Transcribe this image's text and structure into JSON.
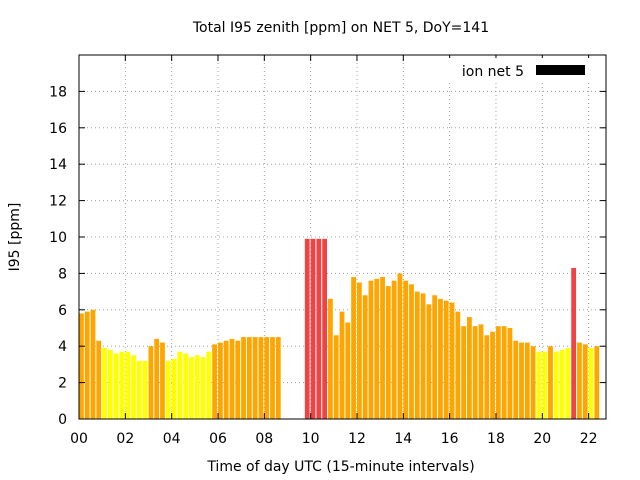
{
  "chart_data": {
    "type": "bar",
    "title": "Total I95 zenith [ppm] on NET 5, DoY=141",
    "xlabel": "Time of day UTC (15-minute intervals)",
    "ylabel": "I95 [ppm]",
    "xlim": [
      0,
      22.75
    ],
    "ylim": [
      0,
      20
    ],
    "grid": true,
    "legend": {
      "position": "top-right",
      "label": "ion net 5",
      "color": "#000000"
    },
    "x_ticks": [
      "00",
      "02",
      "04",
      "06",
      "08",
      "10",
      "12",
      "14",
      "16",
      "18",
      "20",
      "22"
    ],
    "y_ticks": [
      "0",
      "2",
      "4",
      "6",
      "8",
      "10",
      "12",
      "14",
      "16",
      "18"
    ],
    "colors": {
      "yellow": "#ffff00",
      "orange": "#ffa500",
      "red": "#ee4444"
    },
    "bars": [
      {
        "x": 0.0,
        "value": 5.8,
        "color": "orange"
      },
      {
        "x": 0.25,
        "value": 5.9,
        "color": "orange"
      },
      {
        "x": 0.5,
        "value": 6.0,
        "color": "orange"
      },
      {
        "x": 0.75,
        "value": 4.3,
        "color": "orange"
      },
      {
        "x": 1.0,
        "value": 3.9,
        "color": "yellow"
      },
      {
        "x": 1.25,
        "value": 3.8,
        "color": "yellow"
      },
      {
        "x": 1.5,
        "value": 3.6,
        "color": "yellow"
      },
      {
        "x": 1.75,
        "value": 3.7,
        "color": "yellow"
      },
      {
        "x": 2.0,
        "value": 3.7,
        "color": "yellow"
      },
      {
        "x": 2.25,
        "value": 3.5,
        "color": "yellow"
      },
      {
        "x": 2.5,
        "value": 3.2,
        "color": "yellow"
      },
      {
        "x": 2.75,
        "value": 3.2,
        "color": "yellow"
      },
      {
        "x": 3.0,
        "value": 4.0,
        "color": "orange"
      },
      {
        "x": 3.25,
        "value": 4.4,
        "color": "orange"
      },
      {
        "x": 3.5,
        "value": 4.2,
        "color": "orange"
      },
      {
        "x": 3.75,
        "value": 3.2,
        "color": "yellow"
      },
      {
        "x": 4.0,
        "value": 3.3,
        "color": "yellow"
      },
      {
        "x": 4.25,
        "value": 3.7,
        "color": "yellow"
      },
      {
        "x": 4.5,
        "value": 3.6,
        "color": "yellow"
      },
      {
        "x": 4.75,
        "value": 3.4,
        "color": "yellow"
      },
      {
        "x": 5.0,
        "value": 3.5,
        "color": "yellow"
      },
      {
        "x": 5.25,
        "value": 3.4,
        "color": "yellow"
      },
      {
        "x": 5.5,
        "value": 3.7,
        "color": "yellow"
      },
      {
        "x": 5.75,
        "value": 4.1,
        "color": "orange"
      },
      {
        "x": 6.0,
        "value": 4.2,
        "color": "orange"
      },
      {
        "x": 6.25,
        "value": 4.3,
        "color": "orange"
      },
      {
        "x": 6.5,
        "value": 4.4,
        "color": "orange"
      },
      {
        "x": 6.75,
        "value": 4.3,
        "color": "orange"
      },
      {
        "x": 7.0,
        "value": 4.5,
        "color": "orange"
      },
      {
        "x": 7.25,
        "value": 4.5,
        "color": "orange"
      },
      {
        "x": 7.5,
        "value": 4.5,
        "color": "orange"
      },
      {
        "x": 7.75,
        "value": 4.5,
        "color": "orange"
      },
      {
        "x": 8.0,
        "value": 4.5,
        "color": "orange"
      },
      {
        "x": 8.25,
        "value": 4.5,
        "color": "orange"
      },
      {
        "x": 8.5,
        "value": 4.5,
        "color": "orange"
      },
      {
        "x": 9.75,
        "value": 9.9,
        "color": "red"
      },
      {
        "x": 10.0,
        "value": 9.9,
        "color": "red"
      },
      {
        "x": 10.25,
        "value": 9.9,
        "color": "red"
      },
      {
        "x": 10.5,
        "value": 9.9,
        "color": "red"
      },
      {
        "x": 10.75,
        "value": 6.6,
        "color": "orange"
      },
      {
        "x": 11.0,
        "value": 4.6,
        "color": "orange"
      },
      {
        "x": 11.25,
        "value": 5.9,
        "color": "orange"
      },
      {
        "x": 11.5,
        "value": 5.3,
        "color": "orange"
      },
      {
        "x": 11.75,
        "value": 7.8,
        "color": "orange"
      },
      {
        "x": 12.0,
        "value": 7.5,
        "color": "orange"
      },
      {
        "x": 12.25,
        "value": 6.8,
        "color": "orange"
      },
      {
        "x": 12.5,
        "value": 7.6,
        "color": "orange"
      },
      {
        "x": 12.75,
        "value": 7.7,
        "color": "orange"
      },
      {
        "x": 13.0,
        "value": 7.8,
        "color": "orange"
      },
      {
        "x": 13.25,
        "value": 7.3,
        "color": "orange"
      },
      {
        "x": 13.5,
        "value": 7.6,
        "color": "orange"
      },
      {
        "x": 13.75,
        "value": 8.0,
        "color": "orange"
      },
      {
        "x": 14.0,
        "value": 7.6,
        "color": "orange"
      },
      {
        "x": 14.25,
        "value": 7.4,
        "color": "orange"
      },
      {
        "x": 14.5,
        "value": 7.0,
        "color": "orange"
      },
      {
        "x": 14.75,
        "value": 6.9,
        "color": "orange"
      },
      {
        "x": 15.0,
        "value": 6.3,
        "color": "orange"
      },
      {
        "x": 15.25,
        "value": 6.8,
        "color": "orange"
      },
      {
        "x": 15.5,
        "value": 6.6,
        "color": "orange"
      },
      {
        "x": 15.75,
        "value": 6.5,
        "color": "orange"
      },
      {
        "x": 16.0,
        "value": 6.4,
        "color": "orange"
      },
      {
        "x": 16.25,
        "value": 5.9,
        "color": "orange"
      },
      {
        "x": 16.5,
        "value": 5.1,
        "color": "orange"
      },
      {
        "x": 16.75,
        "value": 5.6,
        "color": "orange"
      },
      {
        "x": 17.0,
        "value": 5.1,
        "color": "orange"
      },
      {
        "x": 17.25,
        "value": 5.2,
        "color": "orange"
      },
      {
        "x": 17.5,
        "value": 4.6,
        "color": "orange"
      },
      {
        "x": 17.75,
        "value": 4.8,
        "color": "orange"
      },
      {
        "x": 18.0,
        "value": 5.1,
        "color": "orange"
      },
      {
        "x": 18.25,
        "value": 5.1,
        "color": "orange"
      },
      {
        "x": 18.5,
        "value": 5.0,
        "color": "orange"
      },
      {
        "x": 18.75,
        "value": 4.3,
        "color": "orange"
      },
      {
        "x": 19.0,
        "value": 4.2,
        "color": "orange"
      },
      {
        "x": 19.25,
        "value": 4.2,
        "color": "orange"
      },
      {
        "x": 19.5,
        "value": 4.0,
        "color": "orange"
      },
      {
        "x": 19.75,
        "value": 3.7,
        "color": "yellow"
      },
      {
        "x": 20.0,
        "value": 3.7,
        "color": "yellow"
      },
      {
        "x": 20.25,
        "value": 4.0,
        "color": "orange"
      },
      {
        "x": 20.5,
        "value": 3.7,
        "color": "yellow"
      },
      {
        "x": 20.75,
        "value": 3.8,
        "color": "yellow"
      },
      {
        "x": 21.0,
        "value": 3.9,
        "color": "yellow"
      },
      {
        "x": 21.25,
        "value": 8.3,
        "color": "red"
      },
      {
        "x": 21.5,
        "value": 4.2,
        "color": "orange"
      },
      {
        "x": 21.75,
        "value": 4.1,
        "color": "orange"
      },
      {
        "x": 22.0,
        "value": 3.9,
        "color": "yellow"
      },
      {
        "x": 22.25,
        "value": 4.0,
        "color": "orange"
      }
    ]
  }
}
